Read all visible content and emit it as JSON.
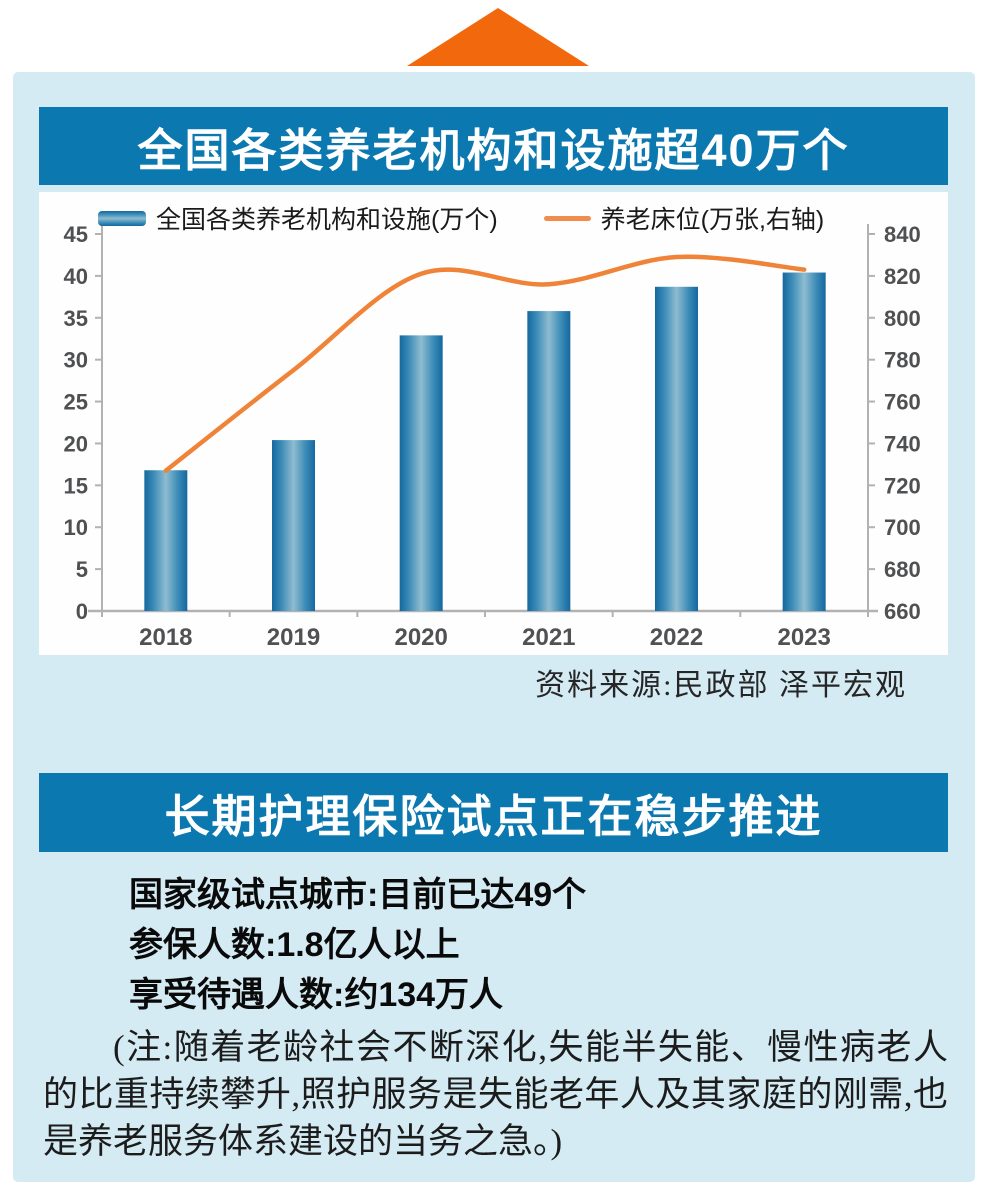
{
  "decorations": {
    "arrow_color": "#f2690d",
    "panel_bg": "#d5ebf3",
    "header_bg": "#0b78b0"
  },
  "section1": {
    "title": "全国各类养老机构和设施超40万个",
    "source": "资料来源:民政部 泽平宏观"
  },
  "chart_data": {
    "type": "bar+line combo",
    "categories": [
      "2018",
      "2019",
      "2020",
      "2021",
      "2022",
      "2023"
    ],
    "series": [
      {
        "name": "全国各类养老机构和设施(万个)",
        "type": "bar",
        "axis": "left",
        "values": [
          16.8,
          20.4,
          32.9,
          35.8,
          38.7,
          40.4
        ]
      },
      {
        "name": "养老床位(万张,右轴)",
        "type": "line",
        "axis": "right",
        "values": [
          727,
          775,
          821,
          816,
          829,
          823
        ]
      }
    ],
    "left_axis": {
      "min": 0,
      "max": 45,
      "step": 5
    },
    "right_axis": {
      "min": 660,
      "max": 840,
      "step": 20
    },
    "legend_position": "top",
    "grid": false,
    "colors": {
      "bar_edge": "#15689e",
      "bar_mid": "#8fbcd0",
      "line": "#ef8338",
      "axis": "#b2b2b2"
    }
  },
  "section2": {
    "title": "长期护理保险试点正在稳步推进",
    "stats": [
      "国家级试点城市:目前已达49个",
      "参保人数:1.8亿人以上",
      "享受待遇人数:约134万人"
    ],
    "note": "(注:随着老龄社会不断深化,失能半失能、慢性病老人的比重持续攀升,照护服务是失能老年人及其家庭的刚需,也是养老服务体系建设的当务之急。)"
  }
}
